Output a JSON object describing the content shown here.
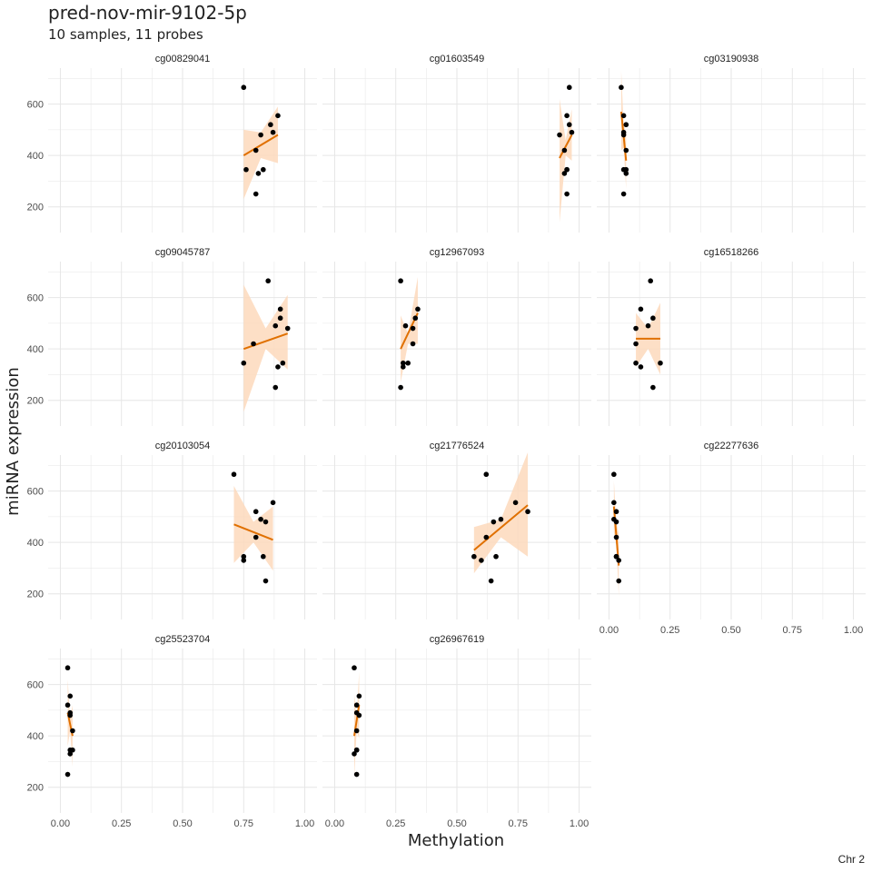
{
  "title": "pred-nov-mir-9102-5p",
  "subtitle": "10 samples, 11 probes",
  "caption": "Chr 2",
  "colors": {
    "line": "#e07000",
    "ribbon": "#fdd9bc",
    "grid": "#e6e6e6",
    "point": "#000000",
    "text": "#222222",
    "axis_text": "#4d4d4d"
  },
  "chart_data": {
    "type": "scatter",
    "xlabel": "Methylation",
    "ylabel": "miRNA expression",
    "xlim": [
      -0.05,
      1.05
    ],
    "ylim": [
      100,
      740
    ],
    "x_ticks": [
      0,
      0.25,
      0.5,
      0.75,
      1
    ],
    "x_tick_labels": [
      "0.00",
      "0.25",
      "0.50",
      "0.75",
      "1.00"
    ],
    "y_ticks": [
      200,
      400,
      600
    ],
    "y_tick_labels": [
      "200",
      "400",
      "600"
    ],
    "grid": true,
    "smooth": "linear fit with confidence ribbon",
    "panels": [
      {
        "probe": "cg00829041",
        "points": [
          [
            0.75,
            665
          ],
          [
            0.76,
            345
          ],
          [
            0.8,
            420
          ],
          [
            0.82,
            480
          ],
          [
            0.86,
            520
          ],
          [
            0.87,
            490
          ],
          [
            0.89,
            555
          ],
          [
            0.81,
            330
          ],
          [
            0.83,
            345
          ],
          [
            0.8,
            250
          ]
        ],
        "fit": [
          [
            0.75,
            400
          ],
          [
            0.89,
            480
          ]
        ],
        "ribbon_upper": [
          [
            0.75,
            500
          ],
          [
            0.82,
            490
          ],
          [
            0.89,
            590
          ]
        ],
        "ribbon_lower": [
          [
            0.75,
            230
          ],
          [
            0.82,
            390
          ],
          [
            0.89,
            370
          ]
        ]
      },
      {
        "probe": "cg01603549",
        "points": [
          [
            0.92,
            480
          ],
          [
            0.96,
            665
          ],
          [
            0.94,
            420
          ],
          [
            0.95,
            555
          ],
          [
            0.96,
            520
          ],
          [
            0.97,
            490
          ],
          [
            0.95,
            345
          ],
          [
            0.94,
            330
          ],
          [
            0.95,
            345
          ],
          [
            0.95,
            250
          ]
        ],
        "fit": [
          [
            0.92,
            390
          ],
          [
            0.97,
            480
          ]
        ],
        "ribbon_upper": [
          [
            0.92,
            620
          ],
          [
            0.945,
            460
          ],
          [
            0.97,
            580
          ]
        ],
        "ribbon_lower": [
          [
            0.92,
            140
          ],
          [
            0.945,
            400
          ],
          [
            0.97,
            380
          ]
        ]
      },
      {
        "probe": "cg03190938",
        "points": [
          [
            0.05,
            665
          ],
          [
            0.06,
            555
          ],
          [
            0.07,
            520
          ],
          [
            0.06,
            490
          ],
          [
            0.06,
            480
          ],
          [
            0.07,
            420
          ],
          [
            0.06,
            345
          ],
          [
            0.07,
            345
          ],
          [
            0.07,
            330
          ],
          [
            0.06,
            250
          ]
        ],
        "fit": [
          [
            0.05,
            570
          ],
          [
            0.07,
            380
          ]
        ],
        "ribbon_upper": [
          [
            0.05,
            730
          ],
          [
            0.06,
            520
          ],
          [
            0.07,
            490
          ]
        ],
        "ribbon_lower": [
          [
            0.05,
            420
          ],
          [
            0.06,
            430
          ],
          [
            0.07,
            270
          ]
        ]
      },
      {
        "probe": "cg09045787",
        "points": [
          [
            0.75,
            345
          ],
          [
            0.79,
            420
          ],
          [
            0.85,
            665
          ],
          [
            0.88,
            490
          ],
          [
            0.9,
            555
          ],
          [
            0.9,
            520
          ],
          [
            0.93,
            480
          ],
          [
            0.89,
            330
          ],
          [
            0.91,
            345
          ],
          [
            0.88,
            250
          ]
        ],
        "fit": [
          [
            0.75,
            400
          ],
          [
            0.93,
            460
          ]
        ],
        "ribbon_upper": [
          [
            0.75,
            650
          ],
          [
            0.84,
            480
          ],
          [
            0.93,
            610
          ]
        ],
        "ribbon_lower": [
          [
            0.75,
            155
          ],
          [
            0.84,
            400
          ],
          [
            0.93,
            320
          ]
        ]
      },
      {
        "probe": "cg12967093",
        "points": [
          [
            0.27,
            665
          ],
          [
            0.29,
            490
          ],
          [
            0.32,
            480
          ],
          [
            0.33,
            520
          ],
          [
            0.34,
            555
          ],
          [
            0.32,
            420
          ],
          [
            0.28,
            330
          ],
          [
            0.3,
            345
          ],
          [
            0.28,
            345
          ],
          [
            0.27,
            250
          ]
        ],
        "fit": [
          [
            0.27,
            400
          ],
          [
            0.34,
            540
          ]
        ],
        "ribbon_upper": [
          [
            0.27,
            530
          ],
          [
            0.3,
            460
          ],
          [
            0.34,
            680
          ]
        ],
        "ribbon_lower": [
          [
            0.27,
            270
          ],
          [
            0.3,
            420
          ],
          [
            0.34,
            420
          ]
        ]
      },
      {
        "probe": "cg16518266",
        "points": [
          [
            0.17,
            665
          ],
          [
            0.13,
            555
          ],
          [
            0.16,
            490
          ],
          [
            0.18,
            520
          ],
          [
            0.11,
            480
          ],
          [
            0.11,
            420
          ],
          [
            0.11,
            345
          ],
          [
            0.13,
            330
          ],
          [
            0.21,
            345
          ],
          [
            0.18,
            250
          ]
        ],
        "fit": [
          [
            0.11,
            440
          ],
          [
            0.21,
            440
          ]
        ],
        "ribbon_upper": [
          [
            0.11,
            540
          ],
          [
            0.16,
            480
          ],
          [
            0.21,
            580
          ]
        ],
        "ribbon_lower": [
          [
            0.11,
            330
          ],
          [
            0.16,
            400
          ],
          [
            0.21,
            300
          ]
        ]
      },
      {
        "probe": "cg20103054",
        "points": [
          [
            0.71,
            665
          ],
          [
            0.8,
            520
          ],
          [
            0.82,
            490
          ],
          [
            0.84,
            480
          ],
          [
            0.8,
            420
          ],
          [
            0.87,
            555
          ],
          [
            0.75,
            345
          ],
          [
            0.75,
            330
          ],
          [
            0.83,
            345
          ],
          [
            0.84,
            250
          ]
        ],
        "fit": [
          [
            0.71,
            470
          ],
          [
            0.87,
            410
          ]
        ],
        "ribbon_upper": [
          [
            0.71,
            620
          ],
          [
            0.79,
            480
          ],
          [
            0.87,
            540
          ]
        ],
        "ribbon_lower": [
          [
            0.71,
            320
          ],
          [
            0.79,
            400
          ],
          [
            0.87,
            290
          ]
        ]
      },
      {
        "probe": "cg21776524",
        "points": [
          [
            0.62,
            665
          ],
          [
            0.74,
            555
          ],
          [
            0.79,
            520
          ],
          [
            0.68,
            490
          ],
          [
            0.65,
            480
          ],
          [
            0.62,
            420
          ],
          [
            0.57,
            345
          ],
          [
            0.6,
            330
          ],
          [
            0.66,
            345
          ],
          [
            0.64,
            250
          ]
        ],
        "fit": [
          [
            0.57,
            370
          ],
          [
            0.79,
            545
          ]
        ],
        "ribbon_upper": [
          [
            0.57,
            460
          ],
          [
            0.68,
            490
          ],
          [
            0.79,
            750
          ]
        ],
        "ribbon_lower": [
          [
            0.57,
            280
          ],
          [
            0.68,
            420
          ],
          [
            0.79,
            345
          ]
        ]
      },
      {
        "probe": "cg22277636",
        "points": [
          [
            0.02,
            665
          ],
          [
            0.02,
            555
          ],
          [
            0.03,
            520
          ],
          [
            0.02,
            490
          ],
          [
            0.03,
            480
          ],
          [
            0.03,
            420
          ],
          [
            0.03,
            345
          ],
          [
            0.04,
            330
          ],
          [
            0.03,
            345
          ],
          [
            0.04,
            250
          ]
        ],
        "fit": [
          [
            0.02,
            540
          ],
          [
            0.04,
            310
          ]
        ],
        "ribbon_upper": [
          [
            0.02,
            640
          ],
          [
            0.03,
            480
          ],
          [
            0.04,
            430
          ]
        ],
        "ribbon_lower": [
          [
            0.02,
            440
          ],
          [
            0.03,
            390
          ],
          [
            0.04,
            190
          ]
        ]
      },
      {
        "probe": "cg25523704",
        "points": [
          [
            0.03,
            665
          ],
          [
            0.03,
            520
          ],
          [
            0.04,
            555
          ],
          [
            0.04,
            480
          ],
          [
            0.04,
            490
          ],
          [
            0.05,
            420
          ],
          [
            0.04,
            345
          ],
          [
            0.05,
            345
          ],
          [
            0.04,
            330
          ],
          [
            0.03,
            250
          ]
        ],
        "fit": [
          [
            0.03,
            490
          ],
          [
            0.05,
            400
          ]
        ],
        "ribbon_upper": [
          [
            0.03,
            620
          ],
          [
            0.04,
            470
          ],
          [
            0.05,
            520
          ]
        ],
        "ribbon_lower": [
          [
            0.03,
            360
          ],
          [
            0.04,
            420
          ],
          [
            0.05,
            280
          ]
        ]
      },
      {
        "probe": "cg26967619",
        "points": [
          [
            0.08,
            665
          ],
          [
            0.1,
            555
          ],
          [
            0.09,
            520
          ],
          [
            0.09,
            490
          ],
          [
            0.1,
            480
          ],
          [
            0.09,
            420
          ],
          [
            0.09,
            345
          ],
          [
            0.08,
            330
          ],
          [
            0.09,
            345
          ],
          [
            0.09,
            250
          ]
        ],
        "fit": [
          [
            0.08,
            400
          ],
          [
            0.1,
            520
          ]
        ],
        "ribbon_upper": [
          [
            0.08,
            560
          ],
          [
            0.09,
            470
          ],
          [
            0.1,
            650
          ]
        ],
        "ribbon_lower": [
          [
            0.08,
            240
          ],
          [
            0.09,
            420
          ],
          [
            0.1,
            390
          ]
        ]
      }
    ]
  }
}
